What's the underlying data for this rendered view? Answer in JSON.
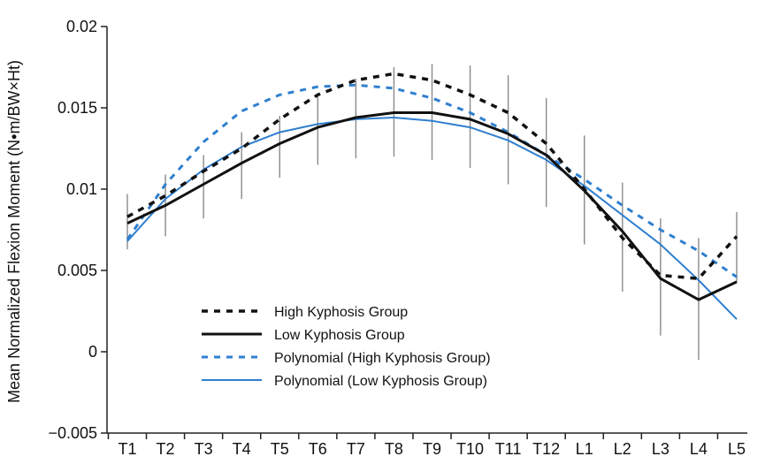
{
  "chart_data": {
    "type": "line",
    "title": "",
    "xlabel": "",
    "ylabel": "Mean Normalized Flexion Moment (N•m/BW×Ht)",
    "ylim": [
      -0.005,
      0.02
    ],
    "yticks": [
      -0.005,
      0,
      0.005,
      0.01,
      0.015,
      0.02
    ],
    "ytick_labels": [
      "−0.005",
      "0",
      "0.005",
      "0.01",
      "0.015",
      "0.02"
    ],
    "categories": [
      "T1",
      "T2",
      "T3",
      "T4",
      "T5",
      "T6",
      "T7",
      "T8",
      "T9",
      "T10",
      "T11",
      "T12",
      "L1",
      "L2",
      "L3",
      "L4",
      "L5"
    ],
    "grid": false,
    "legend_position": "lower-left",
    "series": [
      {
        "name": "High Kyphosis Group",
        "color": "#111111",
        "style": "dashed",
        "values": [
          0.0083,
          0.0096,
          0.0111,
          0.0125,
          0.0143,
          0.0158,
          0.0167,
          0.0171,
          0.0167,
          0.0158,
          0.0147,
          0.0128,
          0.01,
          0.007,
          0.0047,
          0.0045,
          0.0071
        ],
        "error_low": [
          0.0063,
          0.0071,
          0.0082,
          0.0094,
          0.0107,
          0.0115,
          0.0119,
          0.012,
          0.0118,
          0.0113,
          0.0103,
          0.0089,
          0.0066,
          0.0037,
          0.001,
          -0.0005,
          0.0043
        ],
        "error_high": [
          0.0097,
          0.0109,
          0.0121,
          0.0135,
          0.0145,
          0.0158,
          0.0168,
          0.0175,
          0.0177,
          0.0176,
          0.017,
          0.0156,
          0.0133,
          0.0104,
          0.0082,
          0.007,
          0.0086
        ]
      },
      {
        "name": "Low Kyphosis Group",
        "color": "#111111",
        "style": "solid",
        "values": [
          0.0079,
          0.009,
          0.0103,
          0.0116,
          0.0128,
          0.0138,
          0.0144,
          0.0147,
          0.0147,
          0.0143,
          0.0134,
          0.0121,
          0.0099,
          0.0074,
          0.0045,
          0.0032,
          0.0043
        ]
      },
      {
        "name": "Polynomial (High Kyphosis Group)",
        "color": "#2f7fcf",
        "style": "dashed",
        "values": [
          0.0069,
          0.0103,
          0.0129,
          0.0148,
          0.0158,
          0.0163,
          0.0164,
          0.0162,
          0.0156,
          0.0147,
          0.0135,
          0.0121,
          0.0106,
          0.009,
          0.0075,
          0.0062,
          0.0046
        ]
      },
      {
        "name": "Polynomial (Low Kyphosis Group)",
        "color": "#2f7fcf",
        "style": "solid",
        "values": [
          0.0068,
          0.0094,
          0.0112,
          0.0126,
          0.0135,
          0.014,
          0.0143,
          0.0144,
          0.0142,
          0.0138,
          0.013,
          0.0118,
          0.0102,
          0.0084,
          0.0066,
          0.0044,
          0.002
        ]
      }
    ]
  }
}
